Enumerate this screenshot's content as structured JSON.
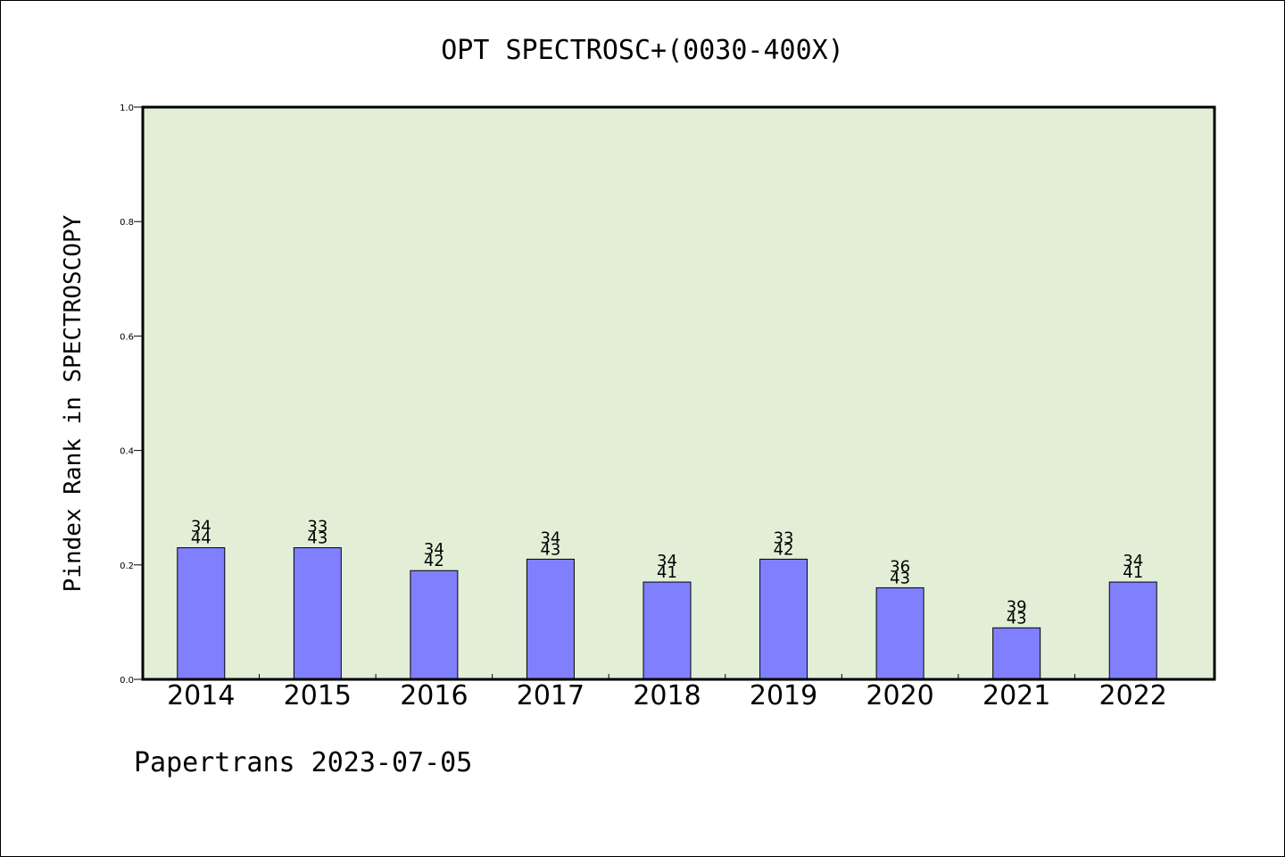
{
  "chart_data": {
    "type": "bar",
    "title": "OPT SPECTROSC+(0030-400X)",
    "ylabel": "Pindex Rank in SPECTROSCOPY",
    "xlabel": "",
    "categories": [
      "2014",
      "2015",
      "2016",
      "2017",
      "2018",
      "2019",
      "2020",
      "2021",
      "2022"
    ],
    "values": [
      0.23,
      0.23,
      0.19,
      0.21,
      0.17,
      0.21,
      0.16,
      0.09,
      0.17
    ],
    "bar_labels_top": [
      "34",
      "33",
      "34",
      "34",
      "34",
      "33",
      "36",
      "39",
      "34"
    ],
    "bar_labels_bottom": [
      "44",
      "43",
      "42",
      "43",
      "41",
      "42",
      "43",
      "43",
      "41"
    ],
    "ylim": [
      0,
      1.0
    ],
    "yticks": [
      "0.0",
      "0.2",
      "0.4",
      "0.6",
      "0.8",
      "1.0"
    ],
    "grid": false,
    "colors": {
      "plot_background": "#e2efd6",
      "bar_fill": "#8080ff",
      "bar_stroke": "#000000"
    }
  },
  "footer": "Papertrans 2023-07-05"
}
